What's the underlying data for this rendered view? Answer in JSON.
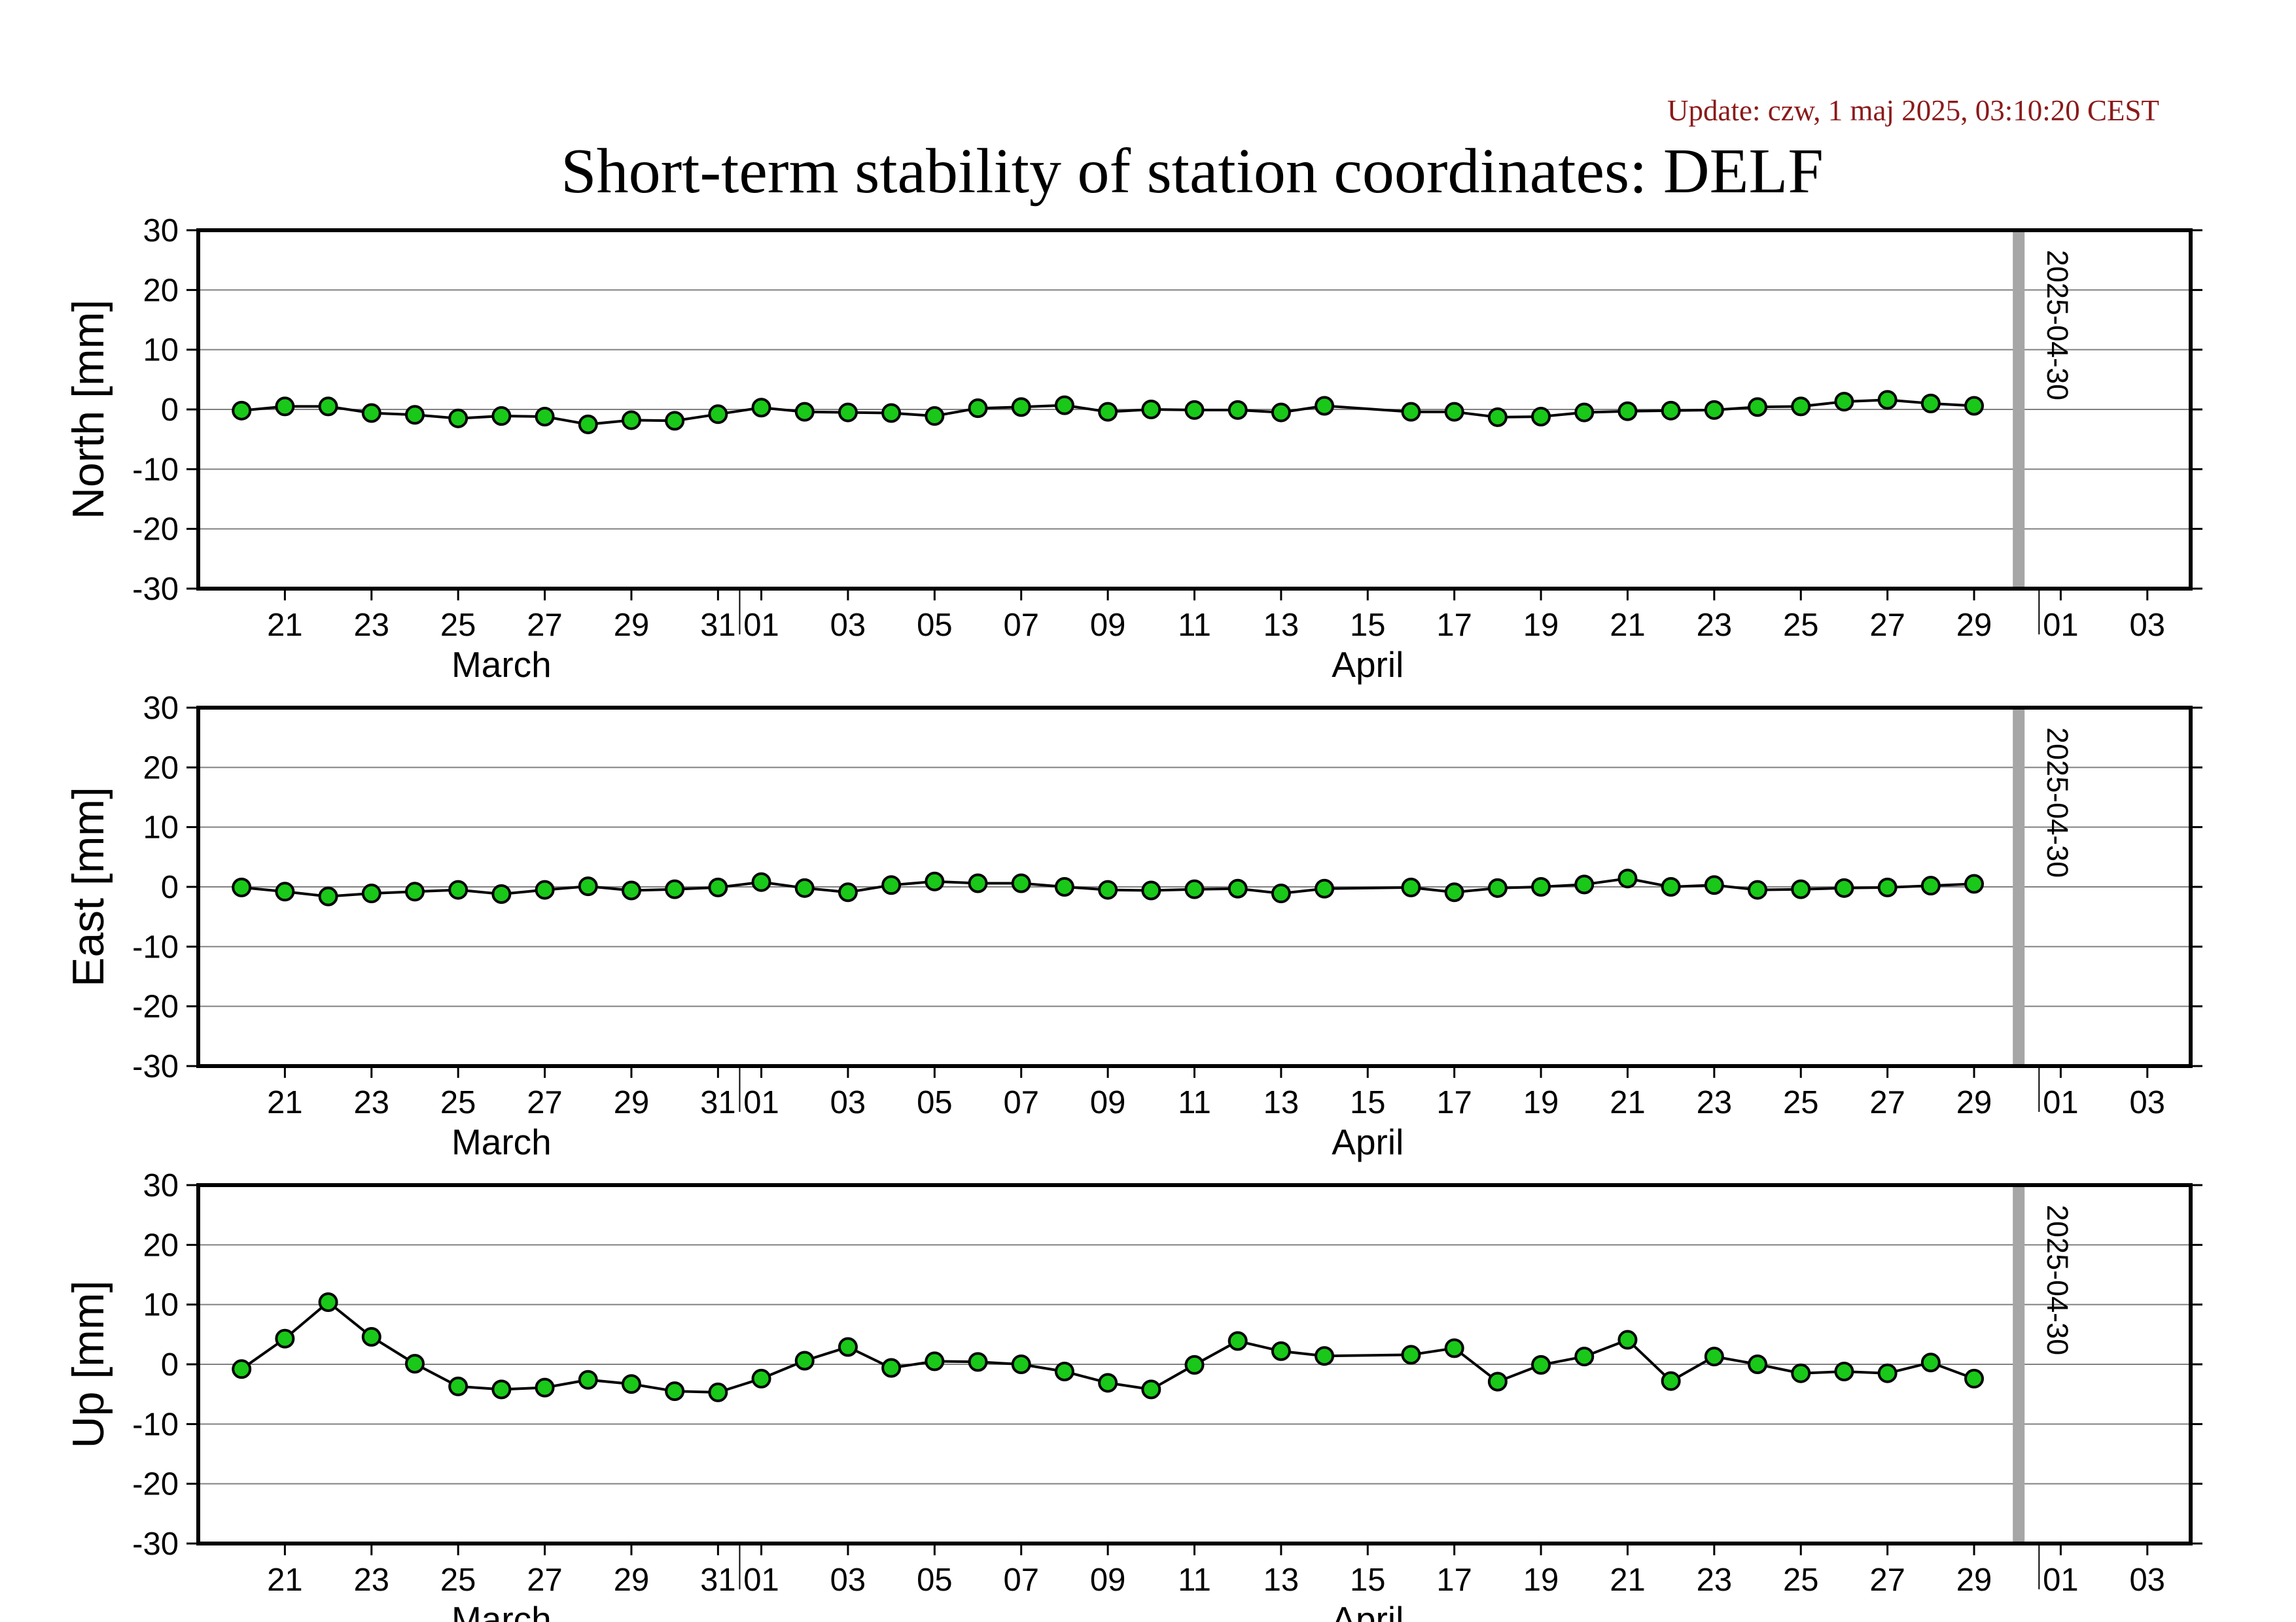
{
  "update_text": "Update: czw, 1 maj 2025, 03:10:20 CEST",
  "title": "Short-term stability of station coordinates: DELF",
  "colors": {
    "marker_fill": "#19c819",
    "marker_stroke": "#000000",
    "line": "#000000",
    "grid": "#808080",
    "today_bar": "#a6a6a6",
    "update_text": "#8b1a1a"
  },
  "chart_data": {
    "type": "line",
    "x_range": [
      "2025-03-19",
      "2025-05-04"
    ],
    "x_ticks": [
      "21",
      "23",
      "25",
      "27",
      "29",
      "31",
      "01",
      "03",
      "05",
      "07",
      "09",
      "11",
      "13",
      "15",
      "17",
      "19",
      "21",
      "23",
      "25",
      "27",
      "29",
      "01",
      "03"
    ],
    "x_months": [
      "March",
      "April"
    ],
    "ylim": [
      -30,
      30
    ],
    "y_ticks": [
      "30",
      "20",
      "10",
      "0",
      "-10",
      "-20",
      "-30"
    ],
    "grid": true,
    "today_marker": "2025-04-30",
    "dates": [
      "2025-03-20",
      "2025-03-21",
      "2025-03-22",
      "2025-03-23",
      "2025-03-24",
      "2025-03-25",
      "2025-03-26",
      "2025-03-27",
      "2025-03-28",
      "2025-03-29",
      "2025-03-30",
      "2025-03-31",
      "2025-04-01",
      "2025-04-02",
      "2025-04-03",
      "2025-04-04",
      "2025-04-05",
      "2025-04-06",
      "2025-04-07",
      "2025-04-08",
      "2025-04-09",
      "2025-04-10",
      "2025-04-11",
      "2025-04-12",
      "2025-04-13",
      "2025-04-14",
      "2025-04-16",
      "2025-04-17",
      "2025-04-18",
      "2025-04-19",
      "2025-04-20",
      "2025-04-21",
      "2025-04-22",
      "2025-04-23",
      "2025-04-24",
      "2025-04-25",
      "2025-04-26",
      "2025-04-27",
      "2025-04-28",
      "2025-04-29"
    ],
    "panels": [
      {
        "ylabel": "North [mm]",
        "values": [
          -0.2,
          0.5,
          0.5,
          -0.6,
          -0.9,
          -1.5,
          -1.1,
          -1.2,
          -2.5,
          -1.8,
          -1.9,
          -0.8,
          0.3,
          -0.4,
          -0.5,
          -0.6,
          -1.1,
          0.2,
          0.4,
          0.7,
          -0.4,
          0.0,
          -0.1,
          -0.1,
          -0.5,
          0.6,
          -0.4,
          -0.4,
          -1.3,
          -1.2,
          -0.5,
          -0.3,
          -0.2,
          -0.1,
          0.4,
          0.5,
          1.3,
          1.6,
          1.0,
          0.6
        ]
      },
      {
        "ylabel": "East [mm]",
        "values": [
          -0.1,
          -0.8,
          -1.6,
          -1.1,
          -0.8,
          -0.5,
          -1.2,
          -0.5,
          0.1,
          -0.6,
          -0.4,
          -0.1,
          0.8,
          -0.2,
          -0.9,
          0.3,
          0.9,
          0.6,
          0.6,
          0.0,
          -0.5,
          -0.6,
          -0.4,
          -0.3,
          -1.1,
          -0.3,
          -0.1,
          -0.9,
          -0.2,
          0.0,
          0.4,
          1.4,
          0.0,
          0.3,
          -0.5,
          -0.4,
          -0.2,
          -0.1,
          0.2,
          0.5
        ]
      },
      {
        "ylabel": "Up [mm]",
        "values": [
          -0.8,
          4.3,
          10.4,
          4.6,
          0.1,
          -3.7,
          -4.2,
          -3.9,
          -2.6,
          -3.3,
          -4.5,
          -4.7,
          -2.4,
          0.6,
          2.9,
          -0.6,
          0.5,
          0.4,
          0.0,
          -1.2,
          -3.1,
          -4.2,
          -0.1,
          3.9,
          2.2,
          1.4,
          1.6,
          2.7,
          -2.9,
          -0.1,
          1.3,
          4.1,
          -2.8,
          1.3,
          0.0,
          -1.5,
          -1.2,
          -1.5,
          0.3,
          -2.4
        ]
      }
    ]
  }
}
